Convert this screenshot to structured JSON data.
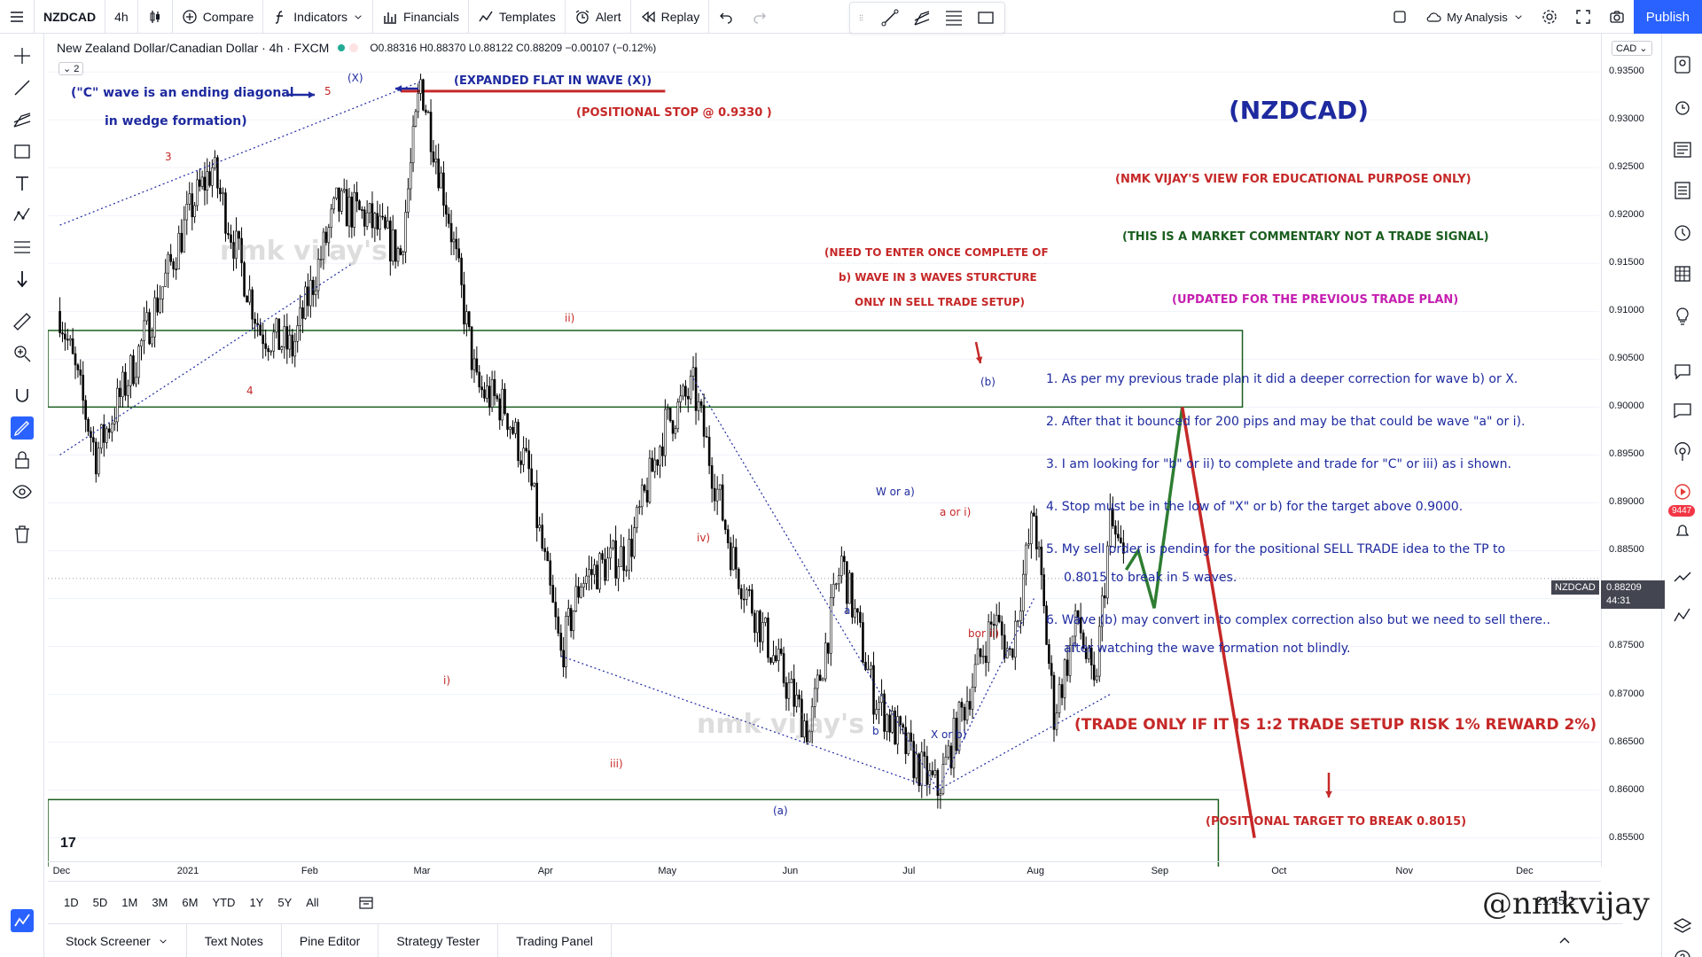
{
  "topbar": {
    "symbol": "NZDCAD",
    "interval": "4h",
    "compare": "Compare",
    "indicators": "Indicators",
    "financials": "Financials",
    "templates": "Templates",
    "alert": "Alert",
    "replay": "Replay",
    "my_analysis": "My Analysis",
    "publish": "Publish"
  },
  "legend": {
    "title": "New Zealand Dollar/Canadian Dollar · 4h · FXCM",
    "ohlc": "O0.88316 H0.88370 L0.88122 C0.88209 −0.00107 (−0.12%)",
    "count": "2"
  },
  "price_axis": {
    "currency": "CAD",
    "labels": [
      "0.93500",
      "0.93000",
      "0.92500",
      "0.92000",
      "0.91500",
      "0.91000",
      "0.90500",
      "0.90000",
      "0.89500",
      "0.89000",
      "0.88500",
      "0.88000",
      "0.87500",
      "0.87000",
      "0.86500",
      "0.86000",
      "0.85500"
    ],
    "last_symbol": "NZDCAD",
    "last_price": "0.88209",
    "countdown": "44:31"
  },
  "time_axis": {
    "labels": [
      "Dec",
      "2021",
      "Feb",
      "Mar",
      "Apr",
      "May",
      "Jun",
      "Jul",
      "Aug",
      "Sep",
      "Oct",
      "Nov",
      "Dec"
    ]
  },
  "range_bar": {
    "ranges": [
      "1D",
      "5D",
      "1M",
      "3M",
      "6M",
      "YTD",
      "1Y",
      "5Y",
      "All"
    ],
    "clock": "21:45:2"
  },
  "bottom_panel": {
    "tabs": [
      "Stock Screener",
      "Text Notes",
      "Pine Editor",
      "Strategy Tester",
      "Trading Panel"
    ]
  },
  "annotations": {
    "title": "(NZDCAD)",
    "disclaimer": "(NMK VIJAY'S VIEW FOR EDUCATIONAL PURPOSE ONLY)",
    "commentary": "(THIS IS A MARKET COMMENTARY NOT A TRADE SIGNAL)",
    "updated": "(UPDATED FOR THE PREVIOUS TRADE PLAN)",
    "c_wave_line1": "(\"C\" wave is an ending diagonal",
    "c_wave_line2": "in wedge formation)",
    "expanded_flat": "(EXPANDED FLAT IN WAVE (X))",
    "positional_stop": "(POSITIONAL STOP @ 0.9330 )",
    "enter_line1": "(NEED TO ENTER ONCE COMPLETE OF",
    "enter_line2": "b) WAVE IN 3 WAVES STURCTURE",
    "enter_line3": "ONLY IN SELL TRADE SETUP)",
    "trade_only": "(TRADE ONLY IF IT IS 1:2 TRADE SETUP RISK 1% REWARD 2%)",
    "positional_target": "(POSITIONAL TARGET TO BREAK 0.8015)",
    "notes": [
      "1. As per my previous trade plan it did a deeper correction for wave b) or X.",
      "2. After that it bounced for 200 pips and may be that could be wave \"a\" or i).",
      "3. I am looking for \"b\" or ii) to complete and trade for \"C\" or iii) as i shown.",
      "4. Stop must be in the low of \"X\" or b) for the target above 0.9000.",
      "5. My sell order is pending for the positional SELL TRADE idea to the TP to",
      "0.8015 to break in 5 waves.",
      "6. Wave (b) may convert in to complex correction also but we need to sell there..",
      "after watching the wave formation not blindly."
    ]
  },
  "wave_labels": {
    "X": "(X)",
    "five": "5",
    "three": "3",
    "four": "4",
    "ii": "ii)",
    "i": "i)",
    "iii": "iii)",
    "iv": "iv)",
    "a_paren": "(a)",
    "b_paren": "(b)",
    "a": "a",
    "b": "b",
    "w_or_a": "W or a)",
    "a_or_i": "a or i)",
    "x_or_b": "X or b)",
    "b_or_ii": "bor ii)"
  },
  "watermark": "nmk vijay's",
  "brand_signature": "@nmkvijay",
  "colors": {
    "accent": "#2962ff",
    "annotation_red": "#c62828",
    "annotation_blue": "#1e2a9f",
    "zone_green": "#1b5e20",
    "projection_green": "#2e7d32",
    "projection_red": "#c62828"
  },
  "chart_data": {
    "type": "candlestick",
    "pair": "NZDCAD",
    "timeframe": "4h",
    "path": [
      [
        "2020-12-01",
        0.91
      ],
      [
        "2020-12-10",
        0.895
      ],
      [
        "2020-12-20",
        0.905
      ],
      [
        "2021-01-03",
        0.921
      ],
      [
        "2021-01-08",
        0.925
      ],
      [
        "2021-01-20",
        0.908
      ],
      [
        "2021-01-28",
        0.906
      ],
      [
        "2021-02-08",
        0.921
      ],
      [
        "2021-02-15",
        0.92
      ],
      [
        "2021-02-24",
        0.916
      ],
      [
        "2021-03-01",
        0.934
      ],
      [
        "2021-03-08",
        0.92
      ],
      [
        "2021-03-15",
        0.902
      ],
      [
        "2021-03-22",
        0.9
      ],
      [
        "2021-03-28",
        0.893
      ],
      [
        "2021-04-05",
        0.874
      ],
      [
        "2021-04-10",
        0.882
      ],
      [
        "2021-04-22",
        0.885
      ],
      [
        "2021-05-01",
        0.898
      ],
      [
        "2021-05-08",
        0.902
      ],
      [
        "2021-05-18",
        0.884
      ],
      [
        "2021-05-28",
        0.874
      ],
      [
        "2021-06-06",
        0.866
      ],
      [
        "2021-06-14",
        0.884
      ],
      [
        "2021-06-22",
        0.87
      ],
      [
        "2021-07-02",
        0.863
      ],
      [
        "2021-07-08",
        0.86
      ],
      [
        "2021-07-14",
        0.868
      ],
      [
        "2021-07-22",
        0.878
      ],
      [
        "2021-07-26",
        0.874
      ],
      [
        "2021-08-01",
        0.889
      ],
      [
        "2021-08-06",
        0.868
      ],
      [
        "2021-08-12",
        0.878
      ],
      [
        "2021-08-16",
        0.87
      ],
      [
        "2021-08-20",
        0.888
      ],
      [
        "2021-08-24",
        0.883
      ]
    ],
    "projection": [
      [
        "2021-08-24",
        0.883
      ],
      [
        "2021-08-27",
        0.885
      ],
      [
        "2021-08-31",
        0.879
      ],
      [
        "2021-09-07",
        0.9
      ],
      [
        "2021-09-25",
        0.855
      ]
    ],
    "zones": [
      {
        "from": 0.9,
        "to": 0.908
      },
      {
        "from": 0.85,
        "to": 0.859
      }
    ],
    "stop_level": 0.933,
    "ylim": [
      0.852,
      0.939
    ]
  }
}
